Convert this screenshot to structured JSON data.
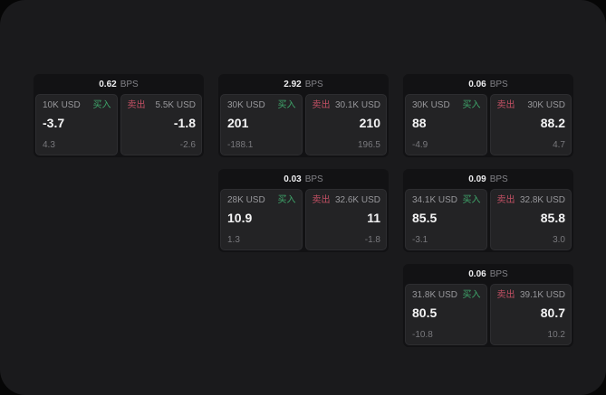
{
  "labels": {
    "bps": "BPS",
    "buy": "买入",
    "sell": "卖出"
  },
  "colors": {
    "page_background": "#1a1a1c",
    "card_header_background": "#121214",
    "tile_background": "#232325",
    "buy_green": "#3fa66b",
    "sell_red": "#c25064"
  },
  "cards": [
    {
      "bps": "0.62",
      "buy": {
        "amount": "10K USD",
        "price": "-3.7",
        "delta": "4.3"
      },
      "sell": {
        "amount": "5.5K USD",
        "price": "-1.8",
        "delta": "-2.6"
      }
    },
    {
      "bps": "2.92",
      "buy": {
        "amount": "30K USD",
        "price": "201",
        "delta": "-188.1"
      },
      "sell": {
        "amount": "30.1K USD",
        "price": "210",
        "delta": "196.5"
      }
    },
    {
      "bps": "0.06",
      "buy": {
        "amount": "30K USD",
        "price": "88",
        "delta": "-4.9"
      },
      "sell": {
        "amount": "30K USD",
        "price": "88.2",
        "delta": "4.7"
      }
    },
    {
      "bps": "0.03",
      "buy": {
        "amount": "28K USD",
        "price": "10.9",
        "delta": "1.3"
      },
      "sell": {
        "amount": "32.6K USD",
        "price": "11",
        "delta": "-1.8"
      }
    },
    {
      "bps": "0.09",
      "buy": {
        "amount": "34.1K USD",
        "price": "85.5",
        "delta": "-3.1"
      },
      "sell": {
        "amount": "32.8K USD",
        "price": "85.8",
        "delta": "3.0"
      }
    },
    {
      "bps": "0.06",
      "buy": {
        "amount": "31.8K USD",
        "price": "80.5",
        "delta": "-10.8"
      },
      "sell": {
        "amount": "39.1K USD",
        "price": "80.7",
        "delta": "10.2"
      }
    }
  ]
}
